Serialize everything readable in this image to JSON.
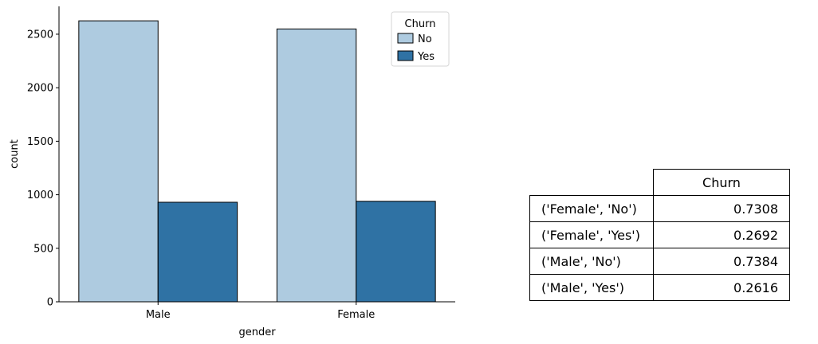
{
  "chart_data": {
    "type": "bar",
    "categories": [
      "Male",
      "Female"
    ],
    "xlabel": "gender",
    "ylabel": "count",
    "ylim": [
      0,
      2760
    ],
    "yticks": [
      0,
      500,
      1000,
      1500,
      2000,
      2500
    ],
    "grid": false,
    "legend": {
      "title": "Churn",
      "placement": "top-right"
    },
    "series": [
      {
        "name": "No",
        "color": "#aecbe0",
        "values": [
          2625,
          2549
        ]
      },
      {
        "name": "Yes",
        "color": "#2f72a4",
        "values": [
          930,
          939
        ]
      }
    ]
  },
  "table": {
    "column_header": "Churn",
    "rows": [
      {
        "label": "('Female', 'No')",
        "value": "0.7308"
      },
      {
        "label": "('Female', 'Yes')",
        "value": "0.2692"
      },
      {
        "label": "('Male', 'No')",
        "value": "0.7384"
      },
      {
        "label": "('Male', 'Yes')",
        "value": "0.2616"
      }
    ]
  }
}
